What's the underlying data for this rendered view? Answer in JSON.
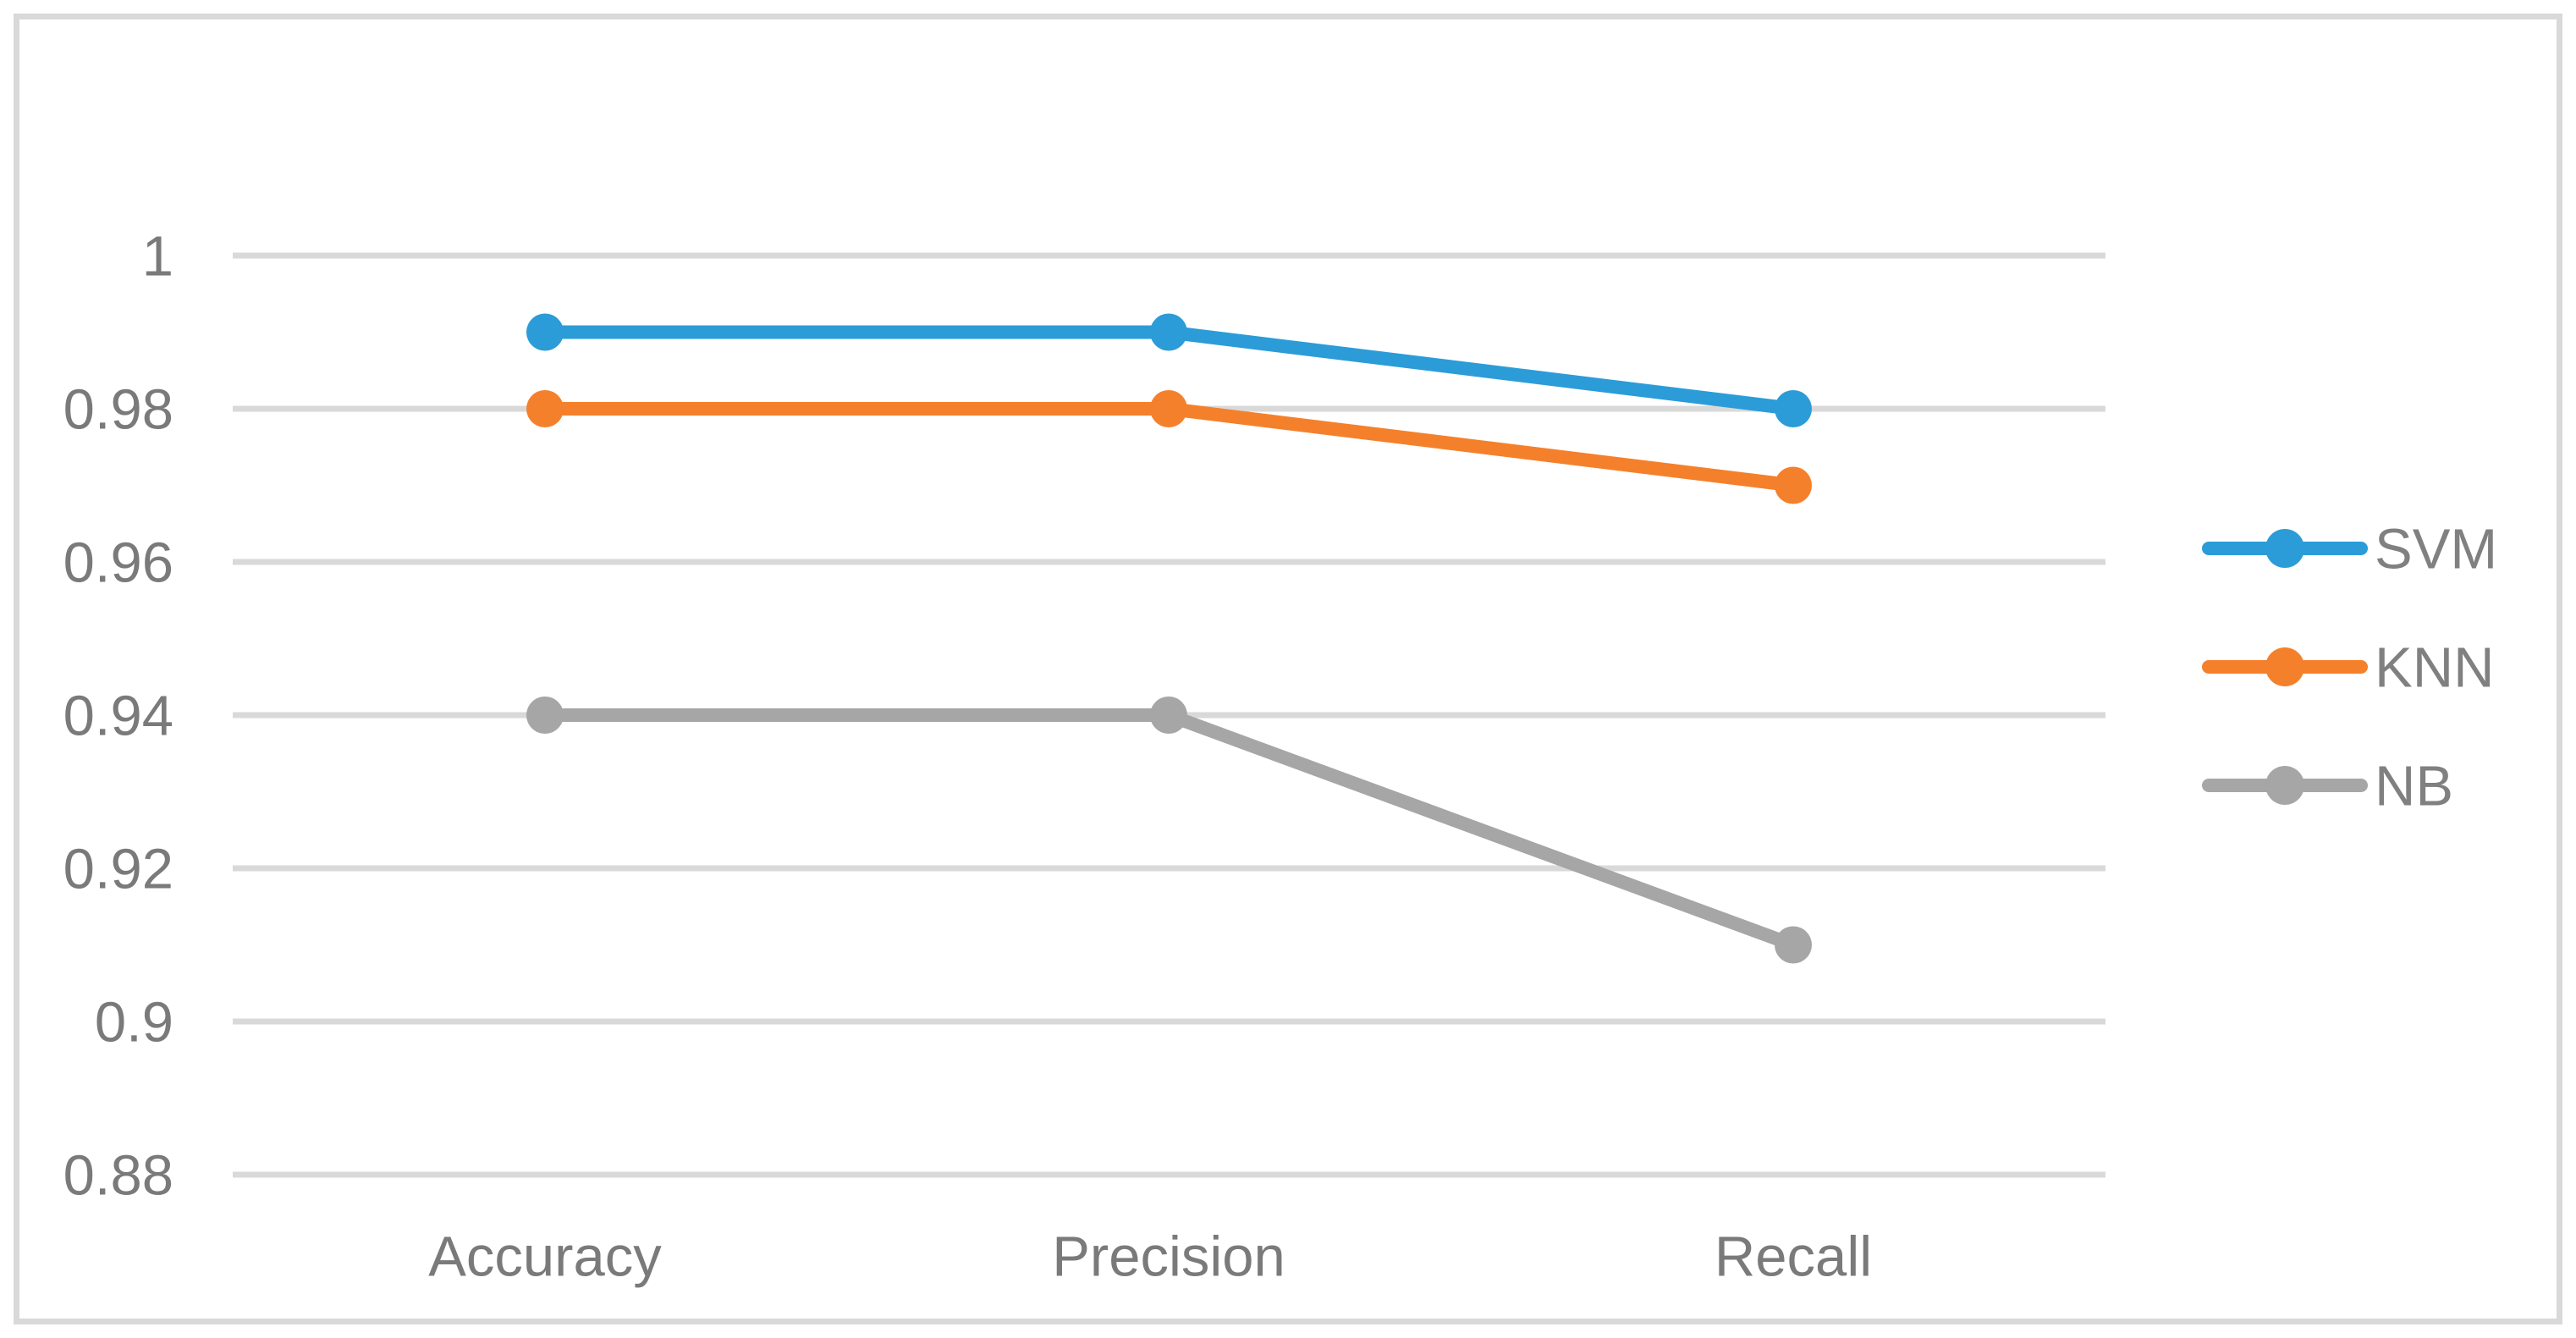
{
  "chart_data": {
    "type": "line",
    "title": "",
    "xlabel": "",
    "ylabel": "",
    "categories": [
      "Accuracy",
      "Precision",
      "Recall"
    ],
    "series": [
      {
        "name": "SVM",
        "values": [
          0.99,
          0.99,
          0.98
        ],
        "color": "#2B9CD8"
      },
      {
        "name": "KNN",
        "values": [
          0.98,
          0.98,
          0.97
        ],
        "color": "#F5802B"
      },
      {
        "name": "NB",
        "values": [
          0.94,
          0.94,
          0.91
        ],
        "color": "#A6A6A6"
      }
    ],
    "ylim": [
      0.88,
      1.0
    ],
    "y_ticks": [
      1,
      0.98,
      0.96,
      0.94,
      0.92,
      0.9,
      0.88
    ],
    "y_tick_labels": [
      "1",
      "0.98",
      "0.96",
      "0.94",
      "0.92",
      "0.9",
      "0.88"
    ],
    "grid": true,
    "legend_position": "right",
    "marker": "circle"
  },
  "style": {
    "grid_color": "#D9D9D9",
    "frame_border_color": "#D9D9D9",
    "label_color": "#7A7A7A",
    "legend_text_color": "#808080",
    "background": "#FFFFFF"
  }
}
